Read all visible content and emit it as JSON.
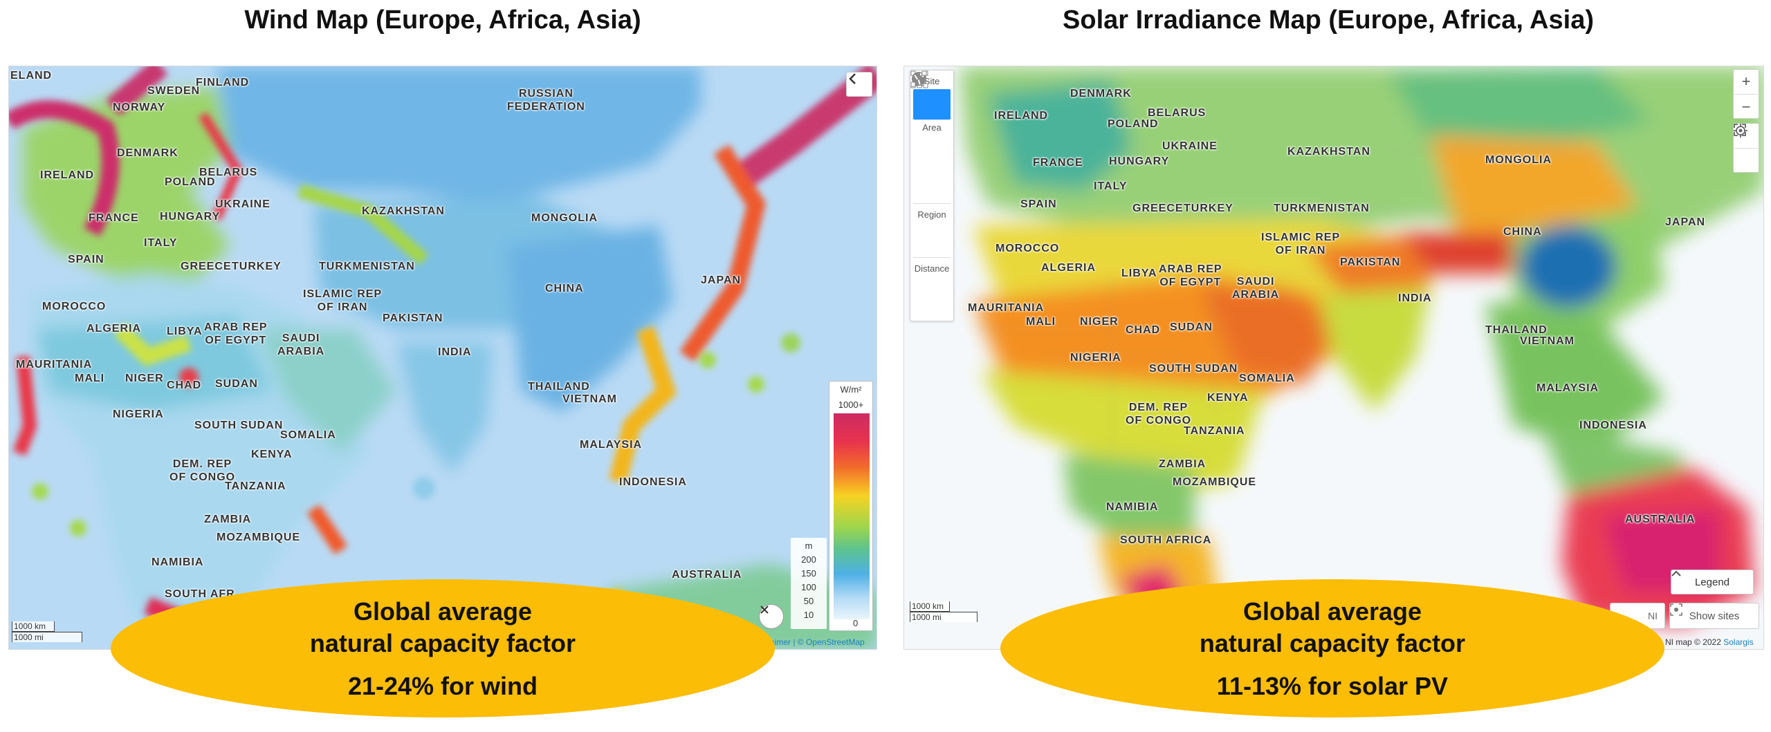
{
  "titles": {
    "wind": "Wind Map (Europe, Africa, Asia)",
    "solar": "Solar Irradiance Map (Europe, Africa, Asia)"
  },
  "wind_map": {
    "labels": {
      "iceland": "ELAND",
      "sweden": "SWEDEN",
      "finland": "FINLAND",
      "norway": "NORWAY",
      "russia": "RUSSIAN\nFEDERATION",
      "denmark": "DENMARK",
      "ireland": "IRELAND",
      "belarus": "BELARUS",
      "poland": "POLAND",
      "ukraine": "UKRAINE",
      "france": "FRANCE",
      "hungary": "HUNGARY",
      "kazakhstan": "KAZAKHSTAN",
      "mongolia": "MONGOLIA",
      "italy": "ITALY",
      "spain": "SPAIN",
      "greece": "GREECE",
      "turkey": "TURKEY",
      "turkmenistan": "TURKMENISTAN",
      "japan": "JAPAN",
      "iran": "ISLAMIC REP\nOF IRAN",
      "china": "CHINA",
      "morocco": "MOROCCO",
      "algeria": "ALGERIA",
      "libya": "LIBYA",
      "egypt": "ARAB REP\nOF EGYPT",
      "saudi": "SAUDI\nARABIA",
      "pakistan": "PAKISTAN",
      "india": "INDIA",
      "mauritania": "MAURITANIA",
      "mali": "MALI",
      "niger": "NIGER",
      "chad": "CHAD",
      "sudan": "SUDAN",
      "thailand": "THAILAND",
      "vietnam": "VIETNAM",
      "nigeria": "NIGERIA",
      "south_sudan": "SOUTH SUDAN",
      "somalia": "SOMALIA",
      "malaysia": "MALAYSIA",
      "kenya": "KENYA",
      "drc": "DEM. REP\nOF CONGO",
      "tanzania": "TANZANIA",
      "indonesia": "INDONESIA",
      "zambia": "ZAMBIA",
      "mozambique": "MOZAMBIQUE",
      "namibia": "NAMIBIA",
      "australia": "AUSTRALIA",
      "south_africa": "SOUTH AFR"
    },
    "legend": {
      "unit": "W/m²",
      "top": "1000+",
      "bottom": "0",
      "height_unit": "m",
      "heights": [
        "200",
        "150",
        "100",
        "50",
        "10"
      ]
    },
    "scale": {
      "km": "1000 km",
      "mi": "1000 mi"
    },
    "attribution": {
      "sep": "aimer | ",
      "osm": "© OpenStreetMap"
    },
    "icons": {
      "collapse": "chevron-left-icon",
      "close": "close-icon"
    }
  },
  "solar_map": {
    "labels": {
      "denmark": "DENMARK",
      "ireland": "IRELAND",
      "belarus": "BELARUS",
      "poland": "POLAND",
      "ukraine": "UKRAINE",
      "kazakhstan": "KAZAKHSTAN",
      "france": "FRANCE",
      "hungary": "HUNGARY",
      "mongolia": "MONGOLIA",
      "italy": "ITALY",
      "spain": "SPAIN",
      "greece": "GREECE",
      "turkey": "TURKEY",
      "turkmenistan": "TURKMENISTAN",
      "japan": "JAPAN",
      "china": "CHINA",
      "iran": "ISLAMIC REP\nOF IRAN",
      "morocco": "MOROCCO",
      "algeria": "ALGERIA",
      "libya": "LIBYA",
      "egypt": "ARAB REP\nOF EGYPT",
      "saudi": "SAUDI\nARABIA",
      "pakistan": "PAKISTAN",
      "india": "INDIA",
      "mauritania": "MAURITANIA",
      "mali": "MALI",
      "niger": "NIGER",
      "chad": "CHAD",
      "sudan": "SUDAN",
      "thailand": "THAILAND",
      "vietnam": "VIETNAM",
      "nigeria": "NIGERIA",
      "south_sudan": "SOUTH SUDAN",
      "somalia": "SOMALIA",
      "malaysia": "MALAYSIA",
      "kenya": "KENYA",
      "drc": "DEM. REP\nOF CONGO",
      "indonesia": "INDONESIA",
      "tanzania": "TANZANIA",
      "zambia": "ZAMBIA",
      "mozambique": "MOZAMBIQUE",
      "australia": "AUSTRALIA",
      "namibia": "NAMIBIA",
      "south_africa": "SOUTH AFRICA"
    },
    "toolbar": {
      "site": "Site",
      "area": "Area",
      "region": "Region",
      "distance": "Distance"
    },
    "controls": {
      "zoom_in": "+",
      "zoom_out": "−"
    },
    "legend_btn": "Legend",
    "show_sites": "Show sites",
    "partial_label": "NI",
    "scale": {
      "km": "1000 km",
      "mi": "1000 mi"
    },
    "attribution": {
      "text": "NI map © 2022 ",
      "brand": "Solargis"
    },
    "icons": {
      "site": "map-pin-icon",
      "area": "polygon-icon",
      "area2": "branch-icon",
      "region": "globe-icon",
      "distance": "ruler-icon",
      "fullscreen": "fullscreen-icon",
      "locate": "locate-icon",
      "chevron": "chevron-up-icon",
      "show_sites": "sites-icon"
    }
  },
  "callouts": {
    "wind": {
      "line1": "Global average",
      "line2": "natural capacity factor",
      "line3": "21-24% for wind"
    },
    "solar": {
      "line1": "Global average",
      "line2": "natural capacity factor",
      "line3": "11-13% for solar PV"
    }
  },
  "colors": {
    "callout": "#fcbd07",
    "active": "#1e90ff",
    "link": "#1a7fc1"
  }
}
